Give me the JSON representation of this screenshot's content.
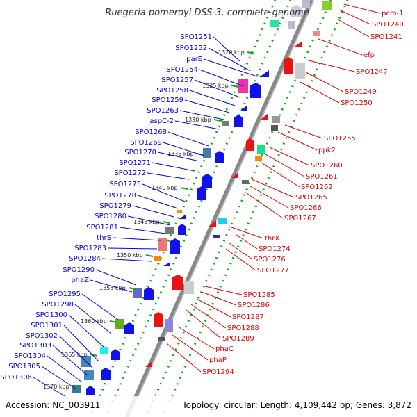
{
  "title": "Ruegeria pomeroyi DSS-3, complete genome",
  "accession_label": "Accession: NC_003911",
  "topology_label": "Topology: circular; Length: 4,109,442 bp; Genes: 3,872",
  "colors": {
    "left_labels": "#0000dd",
    "right_labels": "#dd0000",
    "backbone": "#888888",
    "dots": "#11aa11"
  },
  "kbp_ticks": [
    "1320 kbp",
    "1325 kbp",
    "1330 kbp",
    "1335 kbp",
    "1340 kbp",
    "1345 kbp",
    "1350 kbp",
    "1355 kbp",
    "1360 kbp",
    "1365 kbp",
    "1370 kbp"
  ],
  "left_genes": [
    "SPO1251",
    "SPO1252",
    "parE",
    "SPO1254",
    "SPO1257",
    "SPO1258",
    "SPO1259",
    "SPO1263",
    "aspC-2",
    "SPO1268",
    "SPO1269",
    "SPO1270",
    "SPO1271",
    "SPO1272",
    "SPO1275",
    "SPO1278",
    "SPO1279",
    "SPO1280",
    "SPO1281",
    "thrS",
    "SPO1283",
    "SPO1284",
    "SPO1290",
    "phaZ",
    "SPO1295",
    "SPO1298",
    "SPO1300",
    "SPO1301",
    "SPO1302",
    "SPO1303",
    "SPO1304",
    "SPO1305",
    "SPO1306"
  ],
  "right_genes": [
    "pcm-1",
    "SPO1240",
    "SPO1241",
    "efp",
    "SPO1247",
    "SPO1249",
    "SPO1250",
    "SPO1255",
    "ppk2",
    "SPO1260",
    "SPO1261",
    "SPO1262",
    "SPO1265",
    "SPO1266",
    "SPO1267",
    "thrX",
    "SPO1274",
    "SPO1276",
    "SPO1277",
    "SPO1285",
    "SPO1286",
    "SPO1287",
    "SPO1288",
    "SPO1289",
    "phaC",
    "phaP",
    "SPO1294"
  ]
}
